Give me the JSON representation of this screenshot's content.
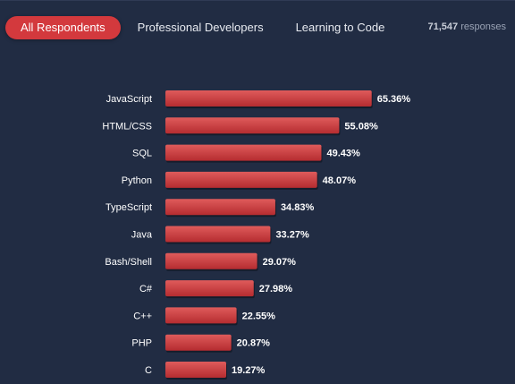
{
  "tabs": [
    {
      "label": "All Respondents",
      "active": true
    },
    {
      "label": "Professional Developers",
      "active": false
    },
    {
      "label": "Learning to Code",
      "active": false
    }
  ],
  "responses": {
    "count": "71,547",
    "suffix": "responses"
  },
  "colors": {
    "background": "#212c43",
    "bar_light": "#df5b5b",
    "bar_dark": "#b52c30",
    "active_tab": "#d3393d"
  },
  "chart_data": {
    "type": "bar",
    "orientation": "horizontal",
    "categories": [
      "JavaScript",
      "HTML/CSS",
      "SQL",
      "Python",
      "TypeScript",
      "Java",
      "Bash/Shell",
      "C#",
      "C++",
      "PHP",
      "C"
    ],
    "values": [
      65.36,
      55.08,
      49.43,
      48.07,
      34.83,
      33.27,
      29.07,
      27.98,
      22.55,
      20.87,
      19.27
    ],
    "value_labels": [
      "65.36%",
      "55.08%",
      "49.43%",
      "48.07%",
      "34.83%",
      "33.27%",
      "29.07%",
      "27.98%",
      "22.55%",
      "20.87%",
      "19.27%"
    ],
    "unit": "%",
    "xlim": [
      0,
      100
    ],
    "grid": false,
    "legend": "none"
  }
}
